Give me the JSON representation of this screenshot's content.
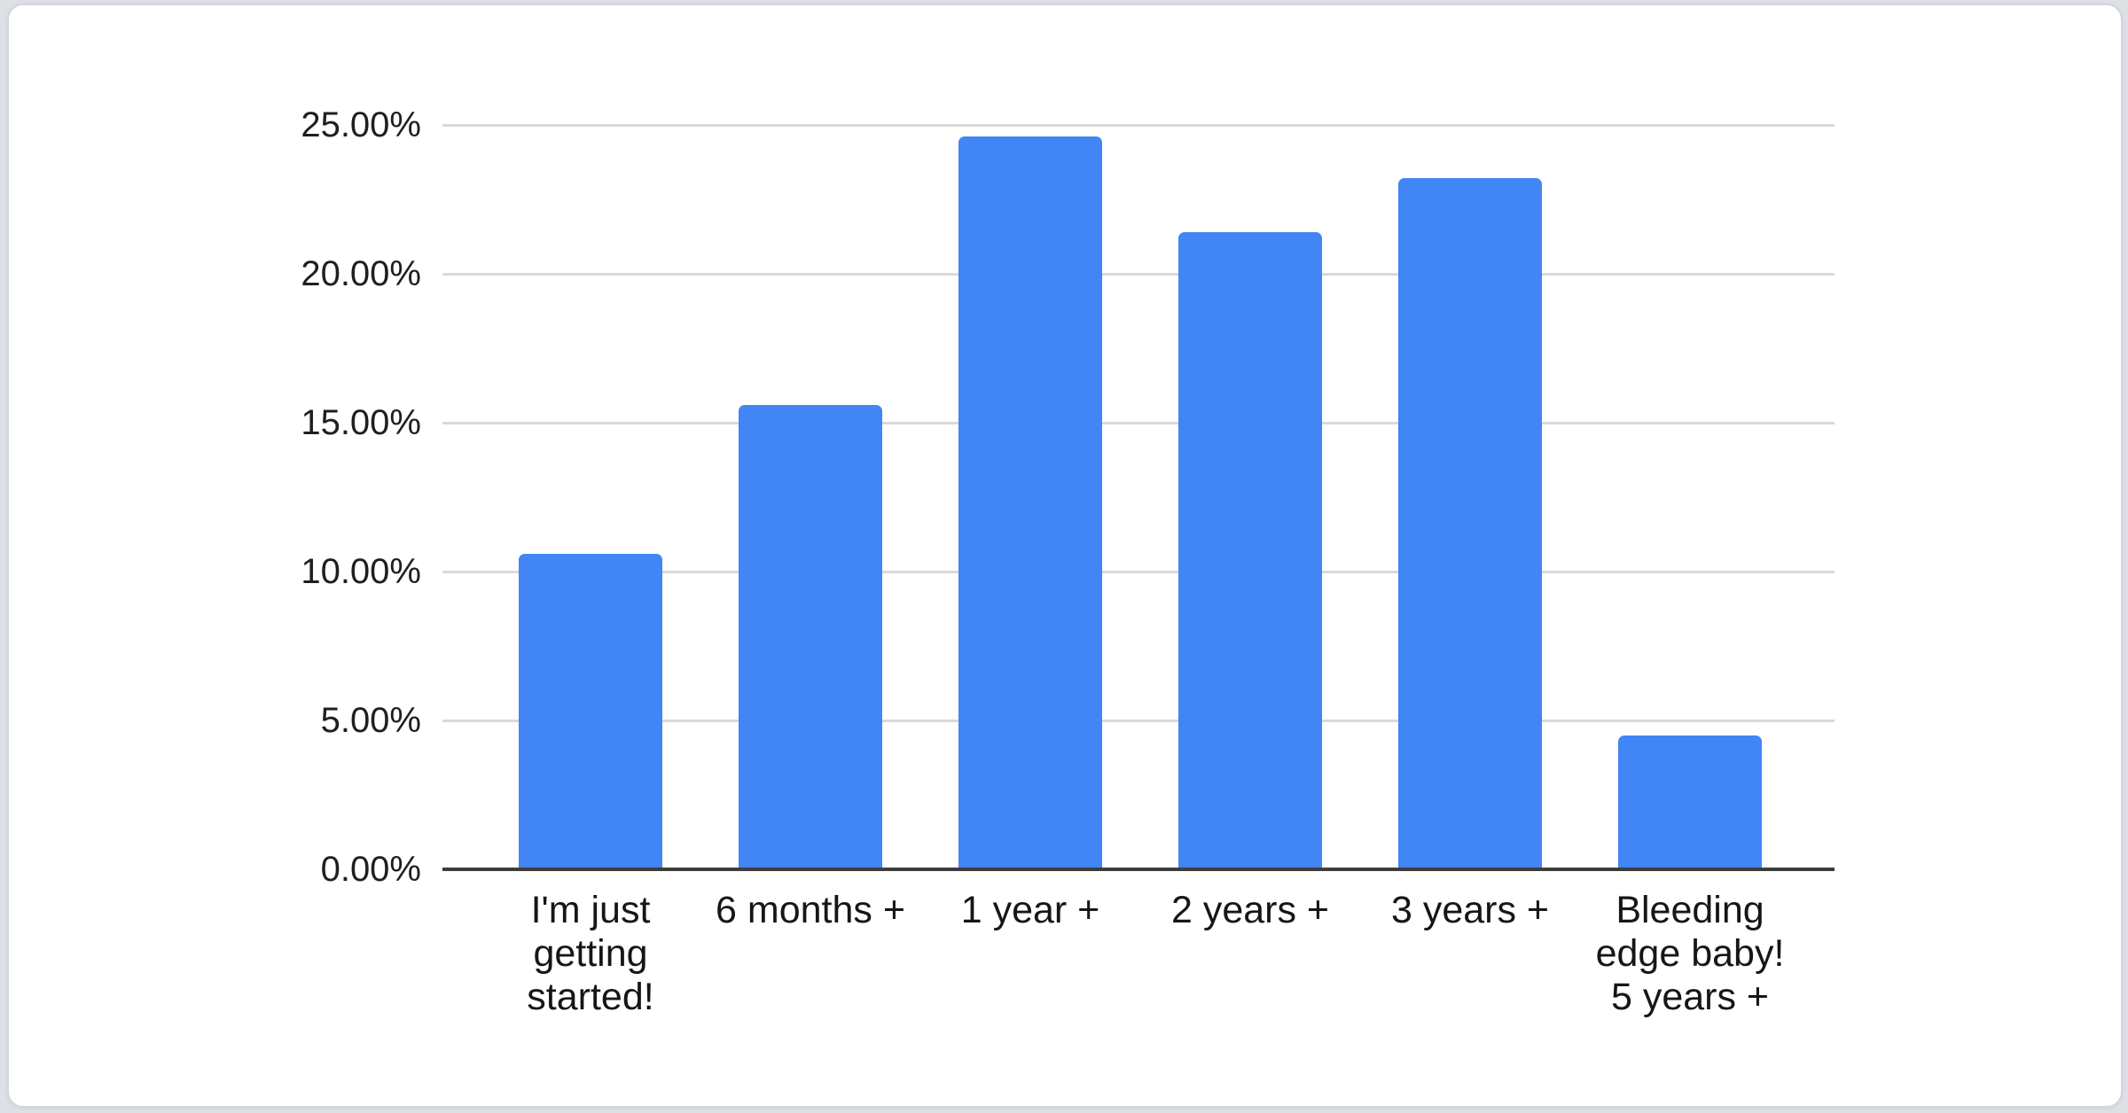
{
  "chart_data": {
    "type": "bar",
    "title": "",
    "xlabel": "",
    "ylabel": "",
    "categories": [
      "I'm just getting started!",
      "6 months +",
      "1 year +",
      "2 years +",
      "3 years +",
      "Bleeding edge baby! 5 years +"
    ],
    "category_display_lines": [
      [
        "I'm just",
        "getting",
        "started!"
      ],
      [
        "6 months +"
      ],
      [
        "1 year +"
      ],
      [
        "2 years +"
      ],
      [
        "3 years +"
      ],
      [
        "Bleeding",
        "edge baby!",
        "5 years +"
      ]
    ],
    "values": [
      10.6,
      15.6,
      24.6,
      21.4,
      23.2,
      4.5
    ],
    "unit": "%",
    "ylim": [
      0,
      25
    ],
    "ytick_step": 5,
    "yticks": [
      "0.00%",
      "5.00%",
      "10.00%",
      "15.00%",
      "20.00%",
      "25.00%"
    ],
    "grid": true,
    "legend": false,
    "legend_position": "none"
  },
  "colors": {
    "bar": "#4285f4",
    "gridline": "#d9d9d9",
    "axis_line": "#3d3d3d",
    "axis_text": "#1f1f1f",
    "card_background": "#ffffff",
    "card_border": "#d3d6da",
    "page_background": "#dde0e4"
  }
}
